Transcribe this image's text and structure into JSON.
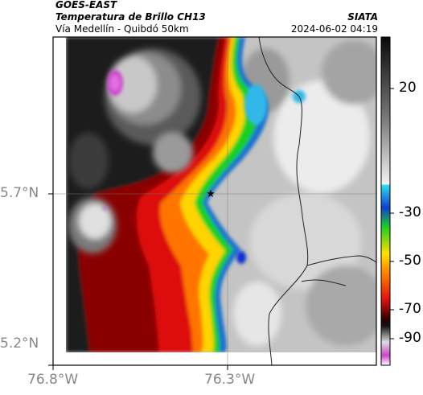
{
  "header": {
    "source": "GOES-EAST",
    "product": "Temperatura de Brillo CH13",
    "route": "Vía Medellín - Quibdó 50km",
    "agency": "SIATA",
    "timestamp": "2024-06-02 04:19"
  },
  "axes": {
    "lat_labels": [
      "5.7°N",
      "5.2°N"
    ],
    "lon_labels": [
      "76.8°W",
      "76.3°W"
    ]
  },
  "colorbar": {
    "ticks": [
      "20",
      "-30",
      "-50",
      "-70",
      "-90"
    ],
    "unit_hidden": true
  },
  "colors": {
    "very_cold": "#cc44cc",
    "cold_gray": "#d0d0d0",
    "black": "#111111",
    "red": "#e01010",
    "orange": "#ff6a00",
    "yellow": "#ffe000",
    "green": "#20e020",
    "blue": "#1030d0",
    "cyan": "#30b8e8",
    "warm_gray": "#bdbdbd"
  },
  "marker": {
    "symbol": "★"
  }
}
